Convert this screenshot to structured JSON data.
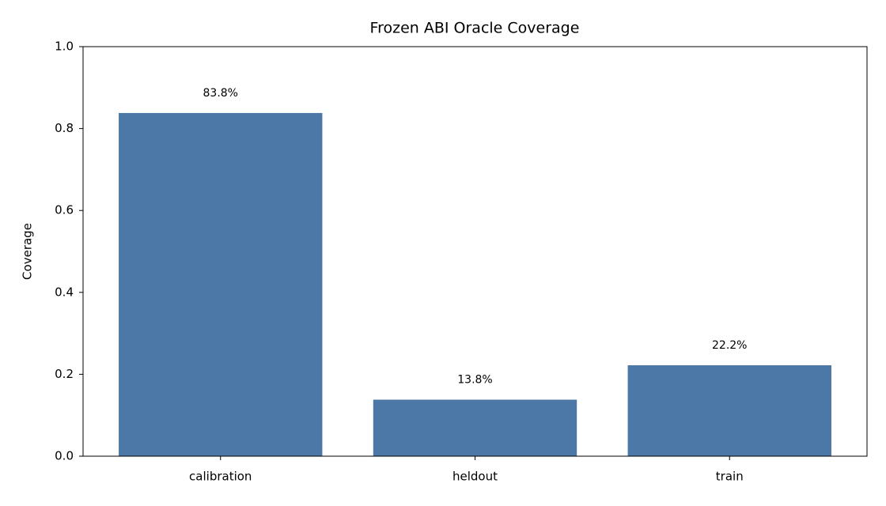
{
  "chart_data": {
    "type": "bar",
    "title": "Frozen ABI Oracle Coverage",
    "y_label": "Coverage",
    "categories": [
      "calibration",
      "heldout",
      "train"
    ],
    "values": [
      0.838,
      0.138,
      0.222
    ],
    "value_labels": [
      "83.8%",
      "13.8%",
      "22.2%"
    ],
    "color": "#4c78a8",
    "ylim": [
      0,
      1
    ],
    "yticks": [
      {
        "value": 0,
        "label": "0.0"
      },
      0.2,
      0.4,
      0.6,
      0.8,
      {
        "value": 1,
        "label": "1.0"
      }
    ],
    "grid": false
  }
}
